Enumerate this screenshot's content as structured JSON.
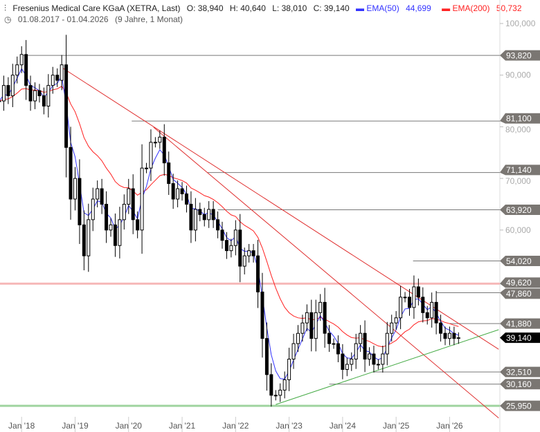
{
  "header": {
    "title": "Fresenius Medical Care KGaA (XETRA, Last)",
    "open": "O: 38,940",
    "high": "H: 40,640",
    "low": "L: 38,010",
    "close": "C: 39,140",
    "ema50_label": "EMA(50)",
    "ema50_value": "44,699",
    "ema200_label": "EMA(200)",
    "ema200_value": "50,732",
    "range": "01.08.2017 - 01.04.2026",
    "span": "(9 Jahre, 1 Monat)"
  },
  "colors": {
    "ema50": "#3333ff",
    "ema200": "#ff2020",
    "trend": "#e03030",
    "support": "#44aa44",
    "label_bg": "#7a7672",
    "current_bg": "#000000"
  },
  "chart_data": {
    "type": "candlestick",
    "start": "2017-08",
    "interval": "month",
    "closes": [
      85,
      88,
      86,
      90,
      92,
      94,
      88,
      85,
      87,
      86,
      84,
      88,
      90,
      89,
      92,
      76,
      66,
      70,
      61,
      55,
      62,
      66,
      68,
      65,
      60,
      61,
      57,
      62,
      65,
      68,
      62,
      60,
      72,
      72,
      77,
      77,
      78,
      73,
      69,
      66,
      68,
      67,
      65,
      60,
      64,
      63,
      62,
      64,
      62,
      60,
      58,
      56,
      57,
      60,
      53,
      55,
      56,
      55,
      48,
      39,
      32,
      28,
      28,
      29,
      31,
      35,
      38,
      40,
      42,
      44,
      39,
      44,
      46,
      40,
      38,
      38,
      36,
      33,
      34,
      35,
      38,
      40,
      35,
      36,
      34,
      34,
      36,
      40,
      42,
      43,
      47,
      47,
      45,
      49,
      47,
      44,
      43,
      46,
      42,
      40,
      39,
      40,
      39,
      39.14
    ],
    "yticks": [
      {
        "v": 100,
        "t": "100,000"
      },
      {
        "v": 90,
        "t": "90,000"
      },
      {
        "v": 80,
        "t": "80,000"
      },
      {
        "v": 70,
        "t": "70,000"
      },
      {
        "v": 60,
        "t": "60,000"
      }
    ],
    "xticks": [
      {
        "i": 5,
        "t": "Jan '18"
      },
      {
        "i": 17,
        "t": "Jan '19"
      },
      {
        "i": 29,
        "t": "Jan '20"
      },
      {
        "i": 41,
        "t": "Jan '21"
      },
      {
        "i": 53,
        "t": "Jan '22"
      },
      {
        "i": 65,
        "t": "Jan '23"
      },
      {
        "i": 77,
        "t": "Jan '24"
      },
      {
        "i": 89,
        "t": "Jan '25"
      },
      {
        "i": 101,
        "t": "Jan '26"
      }
    ],
    "levels": [
      {
        "v": 93.82,
        "t": "93,820",
        "from": 4.7
      },
      {
        "v": 81.1,
        "t": "81,100",
        "from": 29.7
      },
      {
        "v": 71.14,
        "t": "71,140",
        "from": 46.7
      },
      {
        "v": 63.92,
        "t": "63,920",
        "from": 49
      },
      {
        "v": 54.02,
        "t": "54,020",
        "from": 92.8
      },
      {
        "v": 49.62,
        "t": "49,620",
        "from": -1,
        "pink": true
      },
      {
        "v": 47.86,
        "t": "47,860",
        "from": 98
      },
      {
        "v": 41.88,
        "t": "41,880",
        "from": 101
      },
      {
        "v": 32.51,
        "t": "32,510",
        "from": 84
      },
      {
        "v": 30.16,
        "t": "30,160",
        "from": 74
      },
      {
        "v": 25.95,
        "t": "25,950",
        "from": -1,
        "green": true
      }
    ],
    "current": {
      "v": 39.14,
      "t": "39,140"
    },
    "trendlines": [
      {
        "i1": 13.8,
        "v1": 91.6,
        "i2": 112,
        "v2": 36.9,
        "c": "red"
      },
      {
        "i1": 34.6,
        "v1": 79.9,
        "i2": 112,
        "v2": 23.6,
        "c": "red"
      },
      {
        "i1": 62,
        "v1": 26.2,
        "i2": 112,
        "v2": 40.7,
        "c": "green"
      }
    ]
  }
}
